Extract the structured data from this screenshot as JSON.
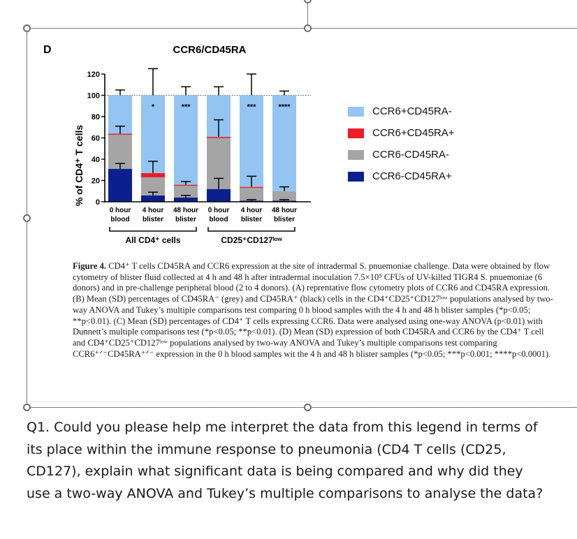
{
  "panel_letter": "D",
  "chart_data": {
    "type": "bar",
    "stacked": true,
    "title": "CCR6/CD45RA",
    "ylabel": "% of CD4⁺ T cells",
    "ylim": [
      0,
      120
    ],
    "yticks": [
      0,
      20,
      40,
      60,
      80,
      100,
      120
    ],
    "categories": [
      {
        "line1": "0 hour",
        "line2": "blood"
      },
      {
        "line1": "4 hour",
        "line2": "blister"
      },
      {
        "line1": "48 hour",
        "line2": "blister"
      },
      {
        "line1": "0 hour",
        "line2": "blood"
      },
      {
        "line1": "4 hour",
        "line2": "blister"
      },
      {
        "line1": "48 hour",
        "line2": "blister"
      }
    ],
    "groups": [
      {
        "label": "All CD4⁺ cells",
        "from": 0,
        "to": 2
      },
      {
        "label": "CD25⁺CD127ˡᵒʷ",
        "from": 3,
        "to": 5
      }
    ],
    "series": [
      {
        "name": "CCR6-CD45RA+",
        "color": "#0b1f8e",
        "values": [
          31,
          6,
          4,
          12,
          1,
          1
        ],
        "err": [
          5,
          3,
          2,
          10,
          1,
          1
        ]
      },
      {
        "name": "CCR6-CD45RA-",
        "color": "#a5a5a5",
        "values": [
          32,
          17,
          11,
          48,
          12,
          9
        ],
        "err": [
          0,
          0,
          0,
          0,
          0,
          0
        ]
      },
      {
        "name": "CCR6+CD45RA+",
        "color": "#ee1c25",
        "values": [
          1,
          4,
          1,
          1,
          1,
          0
        ],
        "err": [
          0,
          0,
          0,
          0,
          0,
          0
        ]
      },
      {
        "name": "CCR6+CD45RA-",
        "color": "#93c4f2",
        "values": [
          36,
          73,
          84,
          39,
          86,
          90
        ],
        "err": [
          0,
          0,
          0,
          0,
          0,
          0
        ]
      }
    ],
    "error_bars": {
      "top_mean": [
        100,
        100,
        100,
        100,
        100,
        100
      ],
      "top_sd": [
        5,
        25,
        8,
        8,
        20,
        4
      ],
      "mid_mean": [
        64,
        27,
        16,
        61,
        14,
        10
      ],
      "mid_sd": [
        7,
        11,
        3,
        16,
        10,
        4
      ]
    },
    "significance": [
      "",
      "*",
      "***",
      "",
      "***",
      "****"
    ],
    "legend_position": "right",
    "legend_order": [
      "CCR6+CD45RA-",
      "CCR6+CD45RA+",
      "CCR6-CD45RA-",
      "CCR6-CD45RA+"
    ]
  },
  "caption": {
    "lead": "Figure 4.",
    "body": " CD4⁺ T cells CD45RA and CCR6 expression at the site of intradermal S. pnuemoniae challenge. Data were obtained by flow cytometry of blister fluid collected at 4 h and 48 h after intradermal inoculation 7.5×10⁵ CFUs of UV-killed TIGR4 S. pnuemoniae (6 donors) and in pre-challenge peripheral blood (2 to 4 donors). (A) reprentative flow cytometry plots of CCR6 and CD45RA expression. (B) Mean (SD) percentages of CD45RA⁻ (grey) and CD45RA⁺ (black) cells in the CD4⁺CD25⁺CD127ˡᵒʷ populations analysed by two-way ANOVA and Tukey’s multiple comparisons test comparing 0 h blood samples with the 4 h and 48 h blister samples (*p<0.05; **p<0.01). (C) Mean (SD) percentages of CD4⁺ T cells expressing CCR6. Data were analysed using one-way ANOVA (p<0.01) with Dunnett’s multiple comparisons test (*p<0.05; **p<0.01). (D) Mean (SD) expression of both CD45RA and CCR6 by the CD4⁺ T cell and CD4⁺CD25⁺CD127ˡᵒʷ populations analysed by two-way ANOVA and Tukey’s multiple comparisons test comparing CCR6⁺ᐟ⁻CD45RA⁺ᐟ⁻ expression in the 0 h blood samples wit the 4 h and 48 h blister samples (*p<0.05; ***p<0.001; ****p<0.0001)."
  },
  "question": "Q1. Could you please help me interpret the data from this legend in terms of its place within the immune response to pneumonia (CD4 T cells (CD25, CD127), explain what significant data is being compared and why did they use a two-way ANOVA and Tukey’s multiple comparisons to analyse the data?"
}
